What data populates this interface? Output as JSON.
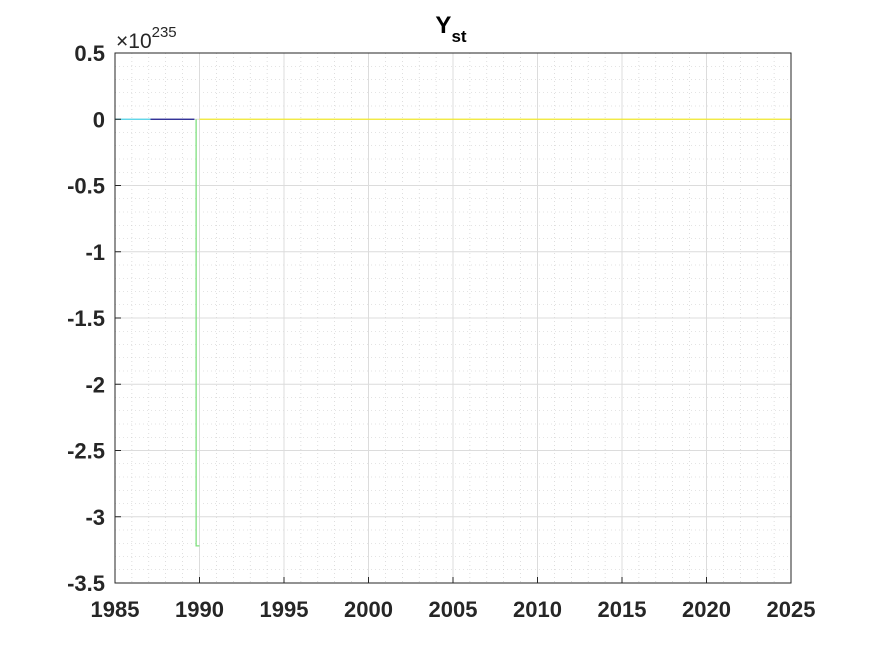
{
  "chart_data": {
    "type": "line",
    "title": "Y",
    "title_subscript": "st",
    "xlabel": "",
    "ylabel": "",
    "xlim": [
      1985,
      2025
    ],
    "ylim": [
      -3.5,
      0.5
    ],
    "y_exponent_multiplier": "×10",
    "y_exponent_power": "235",
    "x_ticks": [
      1985,
      1990,
      1995,
      2000,
      2005,
      2010,
      2015,
      2020,
      2025
    ],
    "x_tick_labels": [
      "1985",
      "1990",
      "1995",
      "2000",
      "2005",
      "2010",
      "2015",
      "2020",
      "2025"
    ],
    "y_ticks": [
      0.5,
      0,
      -0.5,
      -1,
      -1.5,
      -2,
      -2.5,
      -3,
      -3.5
    ],
    "y_tick_labels": [
      "0.5",
      "0",
      "-0.5",
      "-1",
      "-1.5",
      "-2",
      "-2.5",
      "-3",
      "-3.5"
    ],
    "grid": true,
    "minor_grid": true,
    "series": [
      {
        "color": "#4dd2e8",
        "x": [
          1985,
          1987.1
        ],
        "y": [
          0,
          0
        ]
      },
      {
        "color": "#1a1a8c",
        "x": [
          1987.1,
          1989.7
        ],
        "y": [
          0,
          0
        ]
      },
      {
        "color": "#7fe07f",
        "x": [
          1989.8,
          1989.8,
          1990.0
        ],
        "y": [
          0,
          -3.22,
          -3.22
        ]
      },
      {
        "color": "#f2ea2e",
        "x": [
          1990.0,
          2025
        ],
        "y": [
          0,
          0
        ]
      }
    ]
  }
}
